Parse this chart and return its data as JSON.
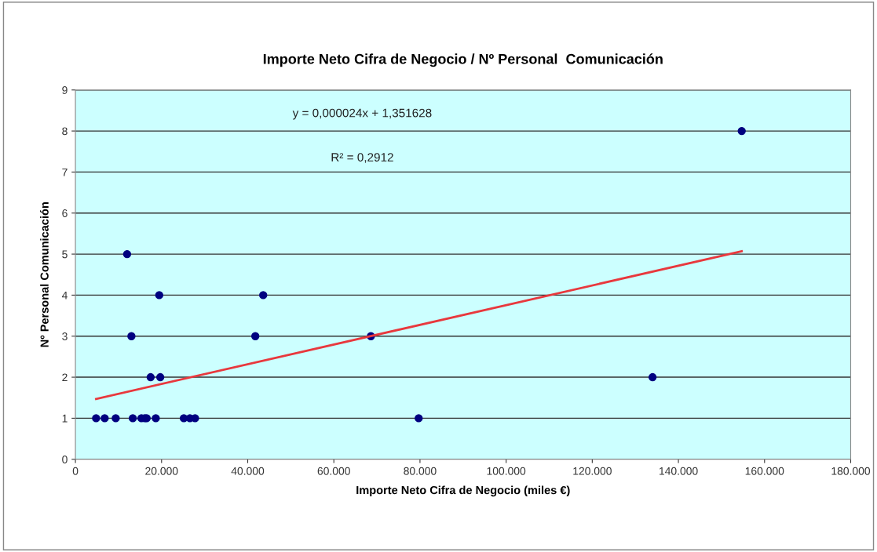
{
  "chart_data": {
    "type": "scatter",
    "title": "Importe Neto Cifra de Negocio / Nº Personal  Comunicación",
    "xlabel": "Importe Neto Cifra de Negocio (miles €)",
    "ylabel": "Nº Personal Comunicación",
    "annotations": [
      "y = 0,000024x + 1,351628",
      "R² = 0,2912"
    ],
    "series": [
      {
        "color": "#000080",
        "marker": "circle",
        "x": [
          4800,
          6800,
          9360,
          13320,
          15320,
          16100,
          16540,
          18660,
          25170,
          26580,
          27780,
          79700,
          17460,
          19700,
          134000,
          13000,
          41770,
          68600,
          19460,
          43600,
          12000,
          154700
        ],
        "values": [
          1,
          1,
          1,
          1,
          1,
          1,
          1,
          1,
          1,
          1,
          1,
          1,
          2,
          2,
          2,
          3,
          3,
          3,
          4,
          4,
          5,
          8
        ]
      },
      {
        "type": "line",
        "color": "#e8383d",
        "x": [
          4800,
          154700
        ],
        "values": [
          1.47,
          5.07
        ]
      }
    ],
    "xlim": [
      0,
      180000
    ],
    "ylim": [
      0,
      9
    ],
    "xticks": [
      0,
      {
        "value": 20000,
        "label": "20.000"
      },
      {
        "value": 40000,
        "label": "40.000"
      },
      {
        "value": 60000,
        "label": "60.000"
      },
      {
        "value": 80000,
        "label": "80.000"
      },
      {
        "value": 100000,
        "label": "100.000"
      },
      {
        "value": 120000,
        "label": "120.000"
      },
      {
        "value": 140000,
        "label": "140.000"
      },
      {
        "value": 160000,
        "label": "160.000"
      },
      {
        "value": 180000,
        "label": "180.000"
      }
    ],
    "yticks": [
      0,
      1,
      2,
      3,
      4,
      5,
      6,
      7,
      8,
      9
    ],
    "grid": "y"
  }
}
